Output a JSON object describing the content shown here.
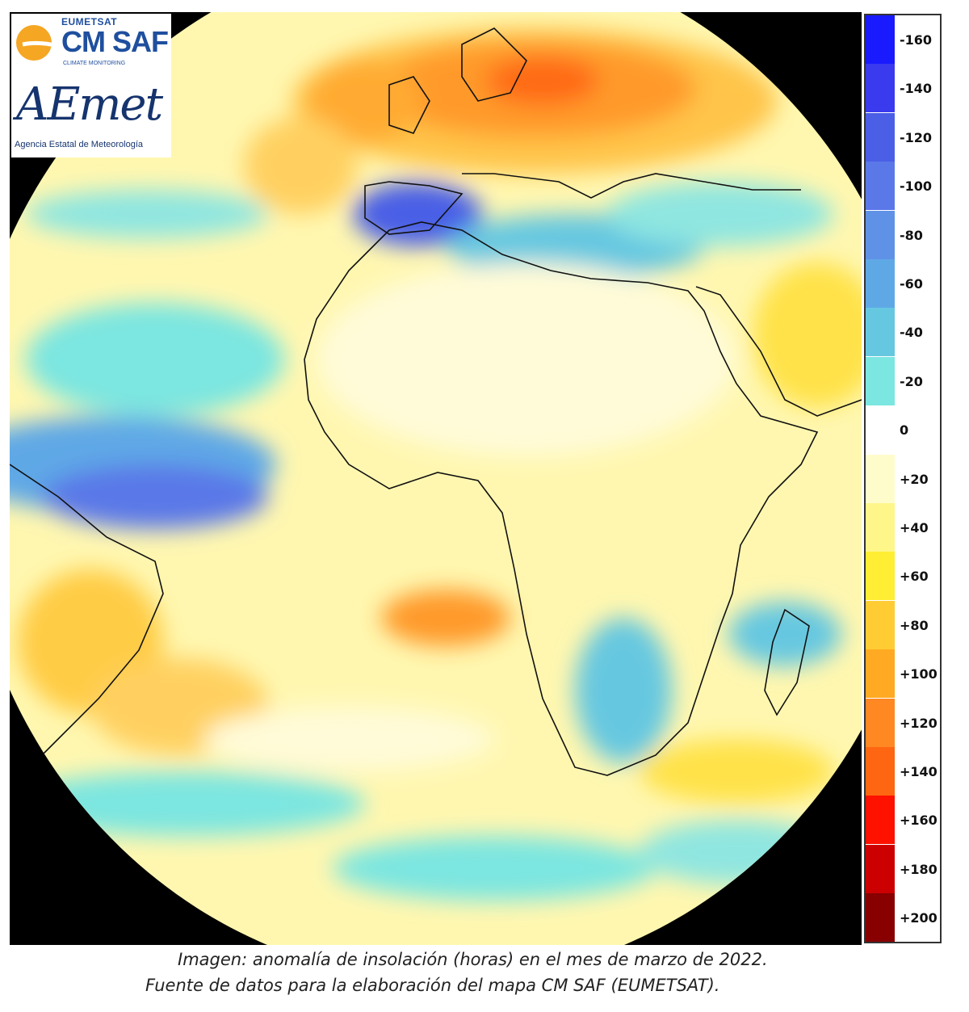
{
  "logos": {
    "eumetsat": "EUMETSAT",
    "cmsaf": "CM SAF",
    "climate": "CLIMATE MONITORING",
    "aemet": "AEmet",
    "agencia": "Agencia Estatal de Meteorología"
  },
  "legend": {
    "items": [
      {
        "label": "-160",
        "color": "#1a1aff"
      },
      {
        "label": "-140",
        "color": "#3a3aee"
      },
      {
        "label": "-120",
        "color": "#4a5ee6"
      },
      {
        "label": "-100",
        "color": "#5a78e8"
      },
      {
        "label": "-80",
        "color": "#5f92e6"
      },
      {
        "label": "-60",
        "color": "#5fa8e6"
      },
      {
        "label": "-40",
        "color": "#66c8e0"
      },
      {
        "label": "-20",
        "color": "#7ce6e0"
      },
      {
        "label": "0",
        "color": "#ffffff"
      },
      {
        "label": "+20",
        "color": "#fffccc"
      },
      {
        "label": "+40",
        "color": "#fff68a"
      },
      {
        "label": "+60",
        "color": "#ffee33"
      },
      {
        "label": "+80",
        "color": "#ffcc33"
      },
      {
        "label": "+100",
        "color": "#ffaa22"
      },
      {
        "label": "+120",
        "color": "#ff8822"
      },
      {
        "label": "+140",
        "color": "#ff6611"
      },
      {
        "label": "+160",
        "color": "#ff1100"
      },
      {
        "label": "+180",
        "color": "#cc0000"
      },
      {
        "label": "+200",
        "color": "#880000"
      }
    ]
  },
  "caption": {
    "line1": "Imagen: anomalía de insolación (horas) en el mes de marzo de 2022.",
    "line2": "Fuente de datos para la elaboración del mapa CM SAF (EUMETSAT)."
  }
}
